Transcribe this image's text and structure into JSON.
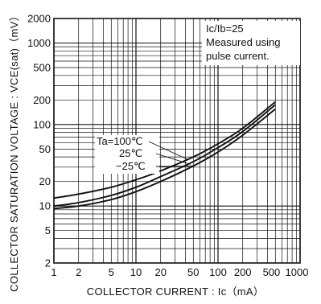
{
  "chart_data": {
    "type": "line",
    "xlabel": "COLLECTOR CURRENT : Ic（mA）",
    "ylabel": "COLLECTOR SATURATION VOLTAGE : VCE(sat)（mV）",
    "x_scale": "log",
    "y_scale": "log",
    "xlim": [
      1,
      1000
    ],
    "ylim": [
      2,
      2000
    ],
    "grid": true,
    "x_ticks": [
      1,
      2,
      5,
      10,
      20,
      50,
      100,
      200,
      500,
      1000
    ],
    "x_tick_labels": [
      "1",
      "2",
      "5",
      "10",
      "20",
      "50",
      "100",
      "200",
      "500",
      "1000"
    ],
    "y_ticks": [
      2,
      5,
      10,
      20,
      50,
      100,
      200,
      500,
      1000,
      2000
    ],
    "y_tick_labels": [
      "2",
      "5",
      "10",
      "20",
      "50",
      "100",
      "200",
      "500",
      "1000",
      "2000"
    ],
    "annotation_box": [
      "Ic/Ib=25",
      "Measured using",
      "pulse current."
    ],
    "series": [
      {
        "name": "Ta=100℃",
        "x": [
          1,
          2,
          5,
          10,
          20,
          50,
          100,
          200,
          500
        ],
        "values": [
          12.5,
          14,
          17,
          21,
          27,
          40,
          58,
          90,
          190
        ]
      },
      {
        "name": "25℃",
        "x": [
          1,
          2,
          5,
          10,
          20,
          50,
          100,
          200,
          500
        ],
        "values": [
          10,
          11,
          13.5,
          17,
          23,
          35,
          52,
          82,
          175
        ]
      },
      {
        "name": "−25℃",
        "x": [
          1,
          2,
          5,
          10,
          20,
          50,
          100,
          200,
          500
        ],
        "values": [
          9.3,
          10,
          12,
          15,
          20,
          31,
          46,
          74,
          155
        ]
      }
    ]
  }
}
